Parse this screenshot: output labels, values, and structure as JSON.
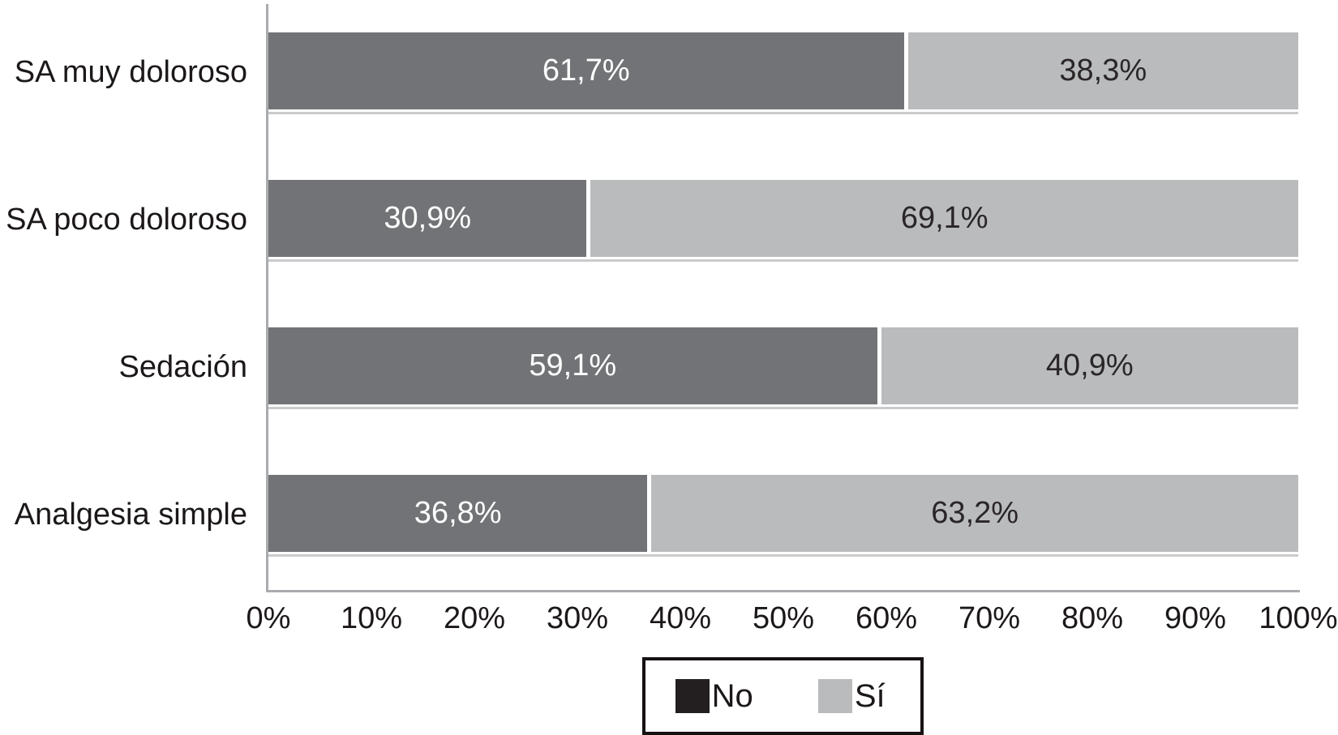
{
  "chart_data": {
    "type": "bar",
    "orientation": "horizontal",
    "stacked": true,
    "title": "",
    "xlabel": "",
    "ylabel": "",
    "xlim": [
      0,
      100
    ],
    "grid": false,
    "axis_color": "#a9abae",
    "x_ticks": [
      "0%",
      "10%",
      "20%",
      "30%",
      "40%",
      "50%",
      "60%",
      "70%",
      "80%",
      "90%",
      "100%"
    ],
    "categories": [
      "SA muy doloroso",
      "SA poco doloroso",
      "Sedación",
      "Analgesia simple"
    ],
    "series": [
      {
        "name": "No",
        "color": "#717377",
        "values": [
          61.7,
          30.9,
          59.1,
          36.8
        ]
      },
      {
        "name": "Sí",
        "color": "#b9bbbd",
        "values": [
          38.3,
          69.1,
          40.9,
          63.2
        ]
      }
    ],
    "data_labels": [
      [
        "61,7%",
        "38,3%"
      ],
      [
        "30,9%",
        "69,1%"
      ],
      [
        "59,1%",
        "40,9%"
      ],
      [
        "36,8%",
        "63,2%"
      ]
    ],
    "legend": {
      "position": "bottom",
      "entries": [
        {
          "label": "No",
          "swatch": "#231f20"
        },
        {
          "label": "Sí",
          "swatch": "#b9bbbd"
        }
      ]
    }
  }
}
